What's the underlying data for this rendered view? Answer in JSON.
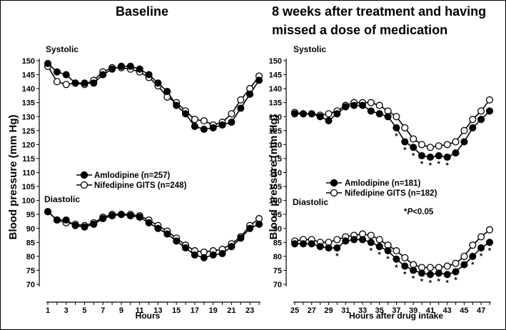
{
  "chart_data": [
    {
      "type": "line",
      "title": "Baseline",
      "xlabel": "Hours",
      "ylabel": "Blood pressure (mm Hg)",
      "ylim": [
        70,
        150
      ],
      "yticks": [
        "70",
        "75",
        "80",
        "85",
        "90",
        "95",
        "100",
        "105",
        "110",
        "115",
        "120",
        "125",
        "130",
        "135",
        "140",
        "145",
        "150"
      ],
      "xticks": [
        "1",
        "3",
        "5",
        "7",
        "9",
        "11",
        "13",
        "15",
        "17",
        "19",
        "21",
        "23"
      ],
      "x": [
        1,
        2,
        3,
        4,
        5,
        6,
        7,
        8,
        9,
        10,
        11,
        12,
        13,
        14,
        15,
        16,
        17,
        18,
        19,
        20,
        21,
        22,
        23,
        24
      ],
      "section_labels": {
        "systolic": "Systolic",
        "diastolic": "Diastolic"
      },
      "legend": [
        "Amlodipine (n=257)",
        "Nifedipine GITS (n=248)"
      ],
      "series": [
        {
          "name": "Amlodipine (n=257)",
          "group": "systolic",
          "marker": "filled",
          "values": [
            149,
            146,
            145,
            142,
            142,
            142,
            145,
            147,
            148,
            148,
            147,
            145,
            142,
            139,
            134,
            131,
            126.5,
            125.5,
            126,
            127,
            128,
            133,
            138,
            143
          ]
        },
        {
          "name": "Nifedipine GITS (n=248)",
          "group": "systolic",
          "marker": "open",
          "values": [
            148,
            142.5,
            141.5,
            142,
            141.5,
            143,
            146,
            147.5,
            147.5,
            147,
            146,
            144,
            141,
            137,
            135,
            132,
            129,
            128.5,
            127,
            128,
            131,
            136,
            140,
            144.5
          ]
        },
        {
          "name": "Amlodipine (n=257)",
          "group": "diastolic",
          "marker": "filled",
          "values": [
            96,
            93,
            93,
            91,
            90.5,
            91.5,
            93.5,
            94.5,
            95,
            94.5,
            94,
            92,
            90,
            88,
            85.5,
            83,
            80.5,
            79.5,
            80.5,
            81,
            83.5,
            86.5,
            90,
            91.5
          ]
        },
        {
          "name": "Nifedipine GITS (n=248)",
          "group": "diastolic",
          "marker": "open",
          "values": [
            96,
            93,
            92,
            91.5,
            91,
            92,
            94,
            95,
            95,
            95,
            94.5,
            93,
            91,
            89,
            86.5,
            84,
            82,
            81.5,
            82,
            82.5,
            84.5,
            87,
            91,
            93.5
          ]
        }
      ]
    },
    {
      "type": "line",
      "title": "8 weeks after treatment and having missed a dose of medication",
      "xlabel": "Hours after drug intake",
      "ylabel": "Blood pressure (mm Hg)",
      "ylim": [
        70,
        150
      ],
      "yticks": [
        "70",
        "75",
        "80",
        "85",
        "90",
        "95",
        "100",
        "105",
        "110",
        "115",
        "120",
        "125",
        "130",
        "135",
        "140",
        "145",
        "150"
      ],
      "xticks": [
        "25",
        "27",
        "29",
        "31",
        "33",
        "35",
        "37",
        "39",
        "41",
        "43",
        "45",
        "47"
      ],
      "x": [
        25,
        26,
        27,
        28,
        29,
        30,
        31,
        32,
        33,
        34,
        35,
        36,
        37,
        38,
        39,
        40,
        41,
        42,
        43,
        44,
        45,
        46,
        47,
        48
      ],
      "section_labels": {
        "systolic": "Systolic",
        "diastolic": "Diastolic"
      },
      "legend": [
        "Amlodipine (n=181)",
        "Nifedipine GITS (n=182)"
      ],
      "annotation": {
        "prefix": "*",
        "italic": "P",
        "suffix": "<0.05"
      },
      "significance_marker": "*",
      "significant_x_systolic": [
        37,
        38,
        39,
        40,
        41,
        42,
        43
      ],
      "significant_x_diastolic": [
        30,
        34,
        35,
        36,
        37,
        38,
        39,
        40,
        41,
        42,
        43,
        44,
        46,
        47,
        48
      ],
      "series": [
        {
          "name": "Amlodipine (n=181)",
          "group": "systolic",
          "marker": "filled",
          "values": [
            131,
            131,
            131,
            130,
            128.5,
            131,
            133.5,
            134,
            134,
            132,
            131,
            130,
            126,
            121,
            119,
            116,
            115.5,
            116,
            115.5,
            117,
            121,
            126,
            129,
            132
          ]
        },
        {
          "name": "Nifedipine GITS (n=182)",
          "group": "systolic",
          "marker": "open",
          "values": [
            131.5,
            131,
            131,
            130.5,
            131,
            132,
            134,
            135,
            135,
            135,
            134,
            132,
            130,
            126,
            122,
            120,
            119,
            119.5,
            120,
            121,
            125,
            129,
            132,
            136
          ]
        },
        {
          "name": "Amlodipine (n=181)",
          "group": "diastolic",
          "marker": "filled",
          "values": [
            84.5,
            84.5,
            84.5,
            83.5,
            83,
            83,
            85.5,
            86,
            86,
            85,
            83.5,
            82,
            79,
            76.5,
            75,
            74,
            73.5,
            74,
            73.5,
            74.5,
            77,
            80,
            83,
            85
          ]
        },
        {
          "name": "Nifedipine GITS (n=182)",
          "group": "diastolic",
          "marker": "open",
          "values": [
            85.5,
            86,
            86,
            85,
            85,
            86,
            87,
            87.5,
            88,
            87.5,
            86,
            84,
            82,
            79.5,
            77,
            76,
            76,
            76,
            76.5,
            77.5,
            80,
            84,
            87,
            89.5
          ]
        }
      ]
    }
  ]
}
